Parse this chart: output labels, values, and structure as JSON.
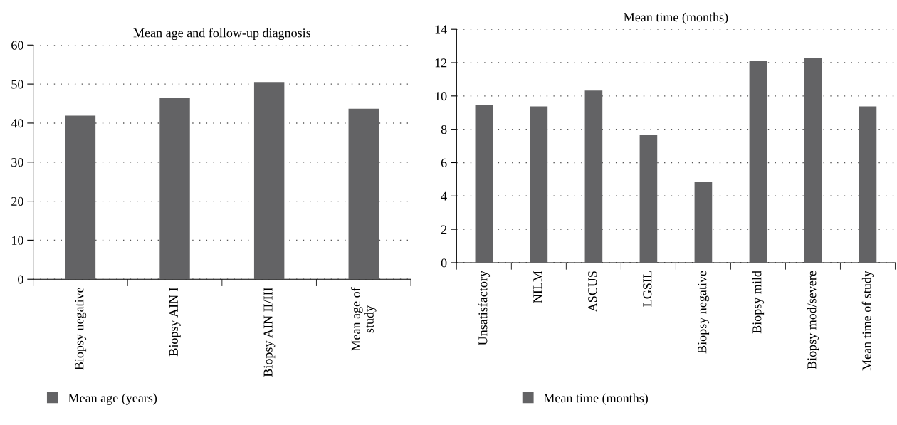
{
  "chart_data": [
    {
      "type": "bar",
      "title": "Mean age and follow-up diagnosis",
      "categories": [
        "Biopsy negative",
        "Biopsy AIN I",
        "Biopsy AIN II/III",
        "Mean age of\nstudy"
      ],
      "series": [
        {
          "name": "Mean age (years)",
          "color": "#636365",
          "values": [
            41.9,
            46.5,
            50.5,
            43.7
          ]
        }
      ],
      "ylim": [
        0,
        60
      ],
      "yticks": [
        0,
        10,
        20,
        30,
        40,
        50,
        60
      ],
      "grid": "y",
      "legend": "bottom left"
    },
    {
      "type": "bar",
      "title": "Mean time (months)",
      "categories": [
        "Unsatisfactory",
        "NILM",
        "ASCUS",
        "LGSIL",
        "Biopsy negative",
        "Biopsy mild",
        "Biopsy mod/severe",
        "Mean time of study"
      ],
      "series": [
        {
          "name": "Mean time (months)",
          "color": "#636365",
          "values": [
            9.45,
            9.37,
            10.32,
            7.66,
            4.84,
            12.11,
            12.28,
            9.37
          ]
        }
      ],
      "ylim": [
        0,
        14
      ],
      "yticks": [
        0,
        2,
        4,
        6,
        8,
        10,
        12,
        14
      ],
      "grid": "y",
      "legend": "bottom left"
    }
  ]
}
